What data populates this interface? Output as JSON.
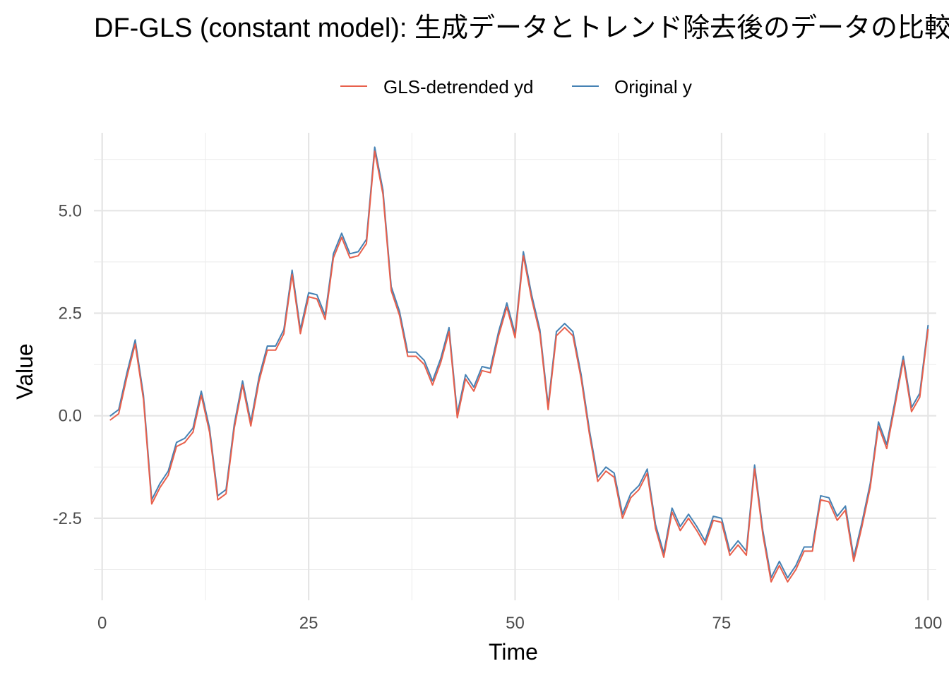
{
  "chart_data": {
    "type": "line",
    "title": "DF-GLS (constant model): 生成データとトレンド除去後のデータの比較",
    "xlabel": "Time",
    "ylabel": "Value",
    "xlim": [
      -1,
      101
    ],
    "ylim": [
      -4.5,
      6.9
    ],
    "x_ticks": [
      0,
      25,
      50,
      75,
      100
    ],
    "x_tick_labels": [
      "0",
      "25",
      "50",
      "75",
      "100"
    ],
    "y_ticks": [
      -2.5,
      0,
      2.5,
      5
    ],
    "y_tick_labels": [
      "-2.5",
      "0.0",
      "2.5",
      "5.0"
    ],
    "grid": true,
    "legend_position": "top",
    "x": [
      1,
      2,
      3,
      4,
      5,
      6,
      7,
      8,
      9,
      10,
      11,
      12,
      13,
      14,
      15,
      16,
      17,
      18,
      19,
      20,
      21,
      22,
      23,
      24,
      25,
      26,
      27,
      28,
      29,
      30,
      31,
      32,
      33,
      34,
      35,
      36,
      37,
      38,
      39,
      40,
      41,
      42,
      43,
      44,
      45,
      46,
      47,
      48,
      49,
      50,
      51,
      52,
      53,
      54,
      55,
      56,
      57,
      58,
      59,
      60,
      61,
      62,
      63,
      64,
      65,
      66,
      67,
      68,
      69,
      70,
      71,
      72,
      73,
      74,
      75,
      76,
      77,
      78,
      79,
      80,
      81,
      82,
      83,
      84,
      85,
      86,
      87,
      88,
      89,
      90,
      91,
      92,
      93,
      94,
      95,
      96,
      97,
      98,
      99,
      100
    ],
    "series": [
      {
        "name": "GLS-detrended yd",
        "color": "#e8604c",
        "values": [
          -0.1,
          0.05,
          0.95,
          1.75,
          0.4,
          -2.15,
          -1.75,
          -1.45,
          -0.75,
          -0.65,
          -0.4,
          0.5,
          -0.4,
          -2.05,
          -1.9,
          -0.3,
          0.75,
          -0.25,
          0.85,
          1.6,
          1.6,
          2.0,
          3.45,
          2.0,
          2.9,
          2.85,
          2.35,
          3.85,
          4.35,
          3.85,
          3.9,
          4.2,
          6.45,
          5.4,
          3.05,
          2.45,
          1.45,
          1.45,
          1.25,
          0.75,
          1.3,
          2.05,
          -0.05,
          0.9,
          0.6,
          1.1,
          1.05,
          1.95,
          2.65,
          1.9,
          3.9,
          2.85,
          2.0,
          0.15,
          1.95,
          2.15,
          1.95,
          0.9,
          -0.45,
          -1.6,
          -1.35,
          -1.5,
          -2.5,
          -2.0,
          -1.8,
          -1.4,
          -2.75,
          -3.45,
          -2.35,
          -2.8,
          -2.5,
          -2.8,
          -3.15,
          -2.55,
          -2.6,
          -3.4,
          -3.15,
          -3.4,
          -1.3,
          -2.9,
          -4.05,
          -3.65,
          -4.05,
          -3.75,
          -3.3,
          -3.3,
          -2.05,
          -2.1,
          -2.55,
          -2.3,
          -3.55,
          -2.7,
          -1.75,
          -0.25,
          -0.8,
          0.25,
          1.35,
          0.1,
          0.45,
          2.1
        ]
      },
      {
        "name": "Original y",
        "color": "#4682b4",
        "values": [
          0.0,
          0.15,
          1.05,
          1.85,
          0.5,
          -2.05,
          -1.65,
          -1.35,
          -0.65,
          -0.55,
          -0.3,
          0.6,
          -0.3,
          -1.95,
          -1.8,
          -0.2,
          0.85,
          -0.15,
          0.95,
          1.7,
          1.7,
          2.1,
          3.55,
          2.1,
          3.0,
          2.95,
          2.45,
          3.95,
          4.45,
          3.95,
          4.0,
          4.3,
          6.55,
          5.5,
          3.15,
          2.55,
          1.55,
          1.55,
          1.35,
          0.85,
          1.4,
          2.15,
          0.05,
          1.0,
          0.7,
          1.2,
          1.15,
          2.05,
          2.75,
          2.0,
          4.0,
          2.95,
          2.1,
          0.25,
          2.05,
          2.25,
          2.05,
          1.0,
          -0.35,
          -1.5,
          -1.25,
          -1.4,
          -2.4,
          -1.9,
          -1.7,
          -1.3,
          -2.65,
          -3.35,
          -2.25,
          -2.7,
          -2.4,
          -2.7,
          -3.05,
          -2.45,
          -2.5,
          -3.3,
          -3.05,
          -3.3,
          -1.2,
          -2.8,
          -3.95,
          -3.55,
          -3.95,
          -3.65,
          -3.2,
          -3.2,
          -1.95,
          -2.0,
          -2.45,
          -2.2,
          -3.45,
          -2.6,
          -1.65,
          -0.15,
          -0.7,
          0.35,
          1.45,
          0.2,
          0.55,
          2.2
        ]
      }
    ]
  }
}
